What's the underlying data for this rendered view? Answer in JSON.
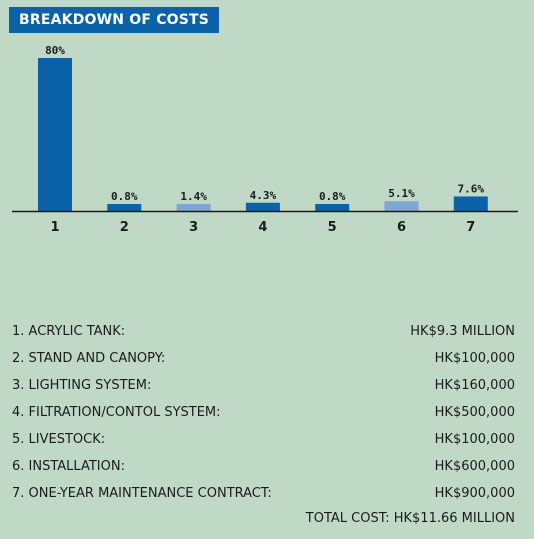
{
  "title": "BREAKDOWN OF COSTS",
  "colors": {
    "background": "#bfd9c6",
    "title_background": "#0c62a9",
    "bar_dark": "#0c62a9",
    "bar_light": "#7ea7d3",
    "axis": "#1b1b1b"
  },
  "chart_data": {
    "type": "bar",
    "categories": [
      "1",
      "2",
      "3",
      "4",
      "5",
      "6",
      "7"
    ],
    "values": [
      80,
      0.8,
      1.4,
      4.3,
      0.8,
      5.1,
      7.6
    ],
    "labels": [
      "80%",
      "0.8%",
      "1.4%",
      "4.3%",
      "0.8%",
      "5.1%",
      "7.6%"
    ],
    "bar_colors": [
      "#0c62a9",
      "#0c62a9",
      "#7ea7d3",
      "#0c62a9",
      "#0c62a9",
      "#7ea7d3",
      "#0c62a9"
    ],
    "title": "BREAKDOWN OF COSTS",
    "xlabel": "",
    "ylabel": "",
    "grid": false,
    "legend": "none"
  },
  "items": [
    {
      "label": "1. ACRYLIC TANK:",
      "value": "HK$9.3 MILLION"
    },
    {
      "label": "2. STAND AND CANOPY:",
      "value": "HK$100,000"
    },
    {
      "label": "3. LIGHTING SYSTEM:",
      "value": "HK$160,000"
    },
    {
      "label": "4. FILTRATION/CONTOL SYSTEM:",
      "value": "HK$500,000"
    },
    {
      "label": "5. LIVESTOCK:",
      "value": "HK$100,000"
    },
    {
      "label": "6. INSTALLATION:",
      "value": "HK$600,000"
    },
    {
      "label": "7. ONE-YEAR MAINTENANCE CONTRACT:",
      "value": "HK$900,000"
    }
  ],
  "total": "TOTAL COST: HK$11.66 MILLION"
}
